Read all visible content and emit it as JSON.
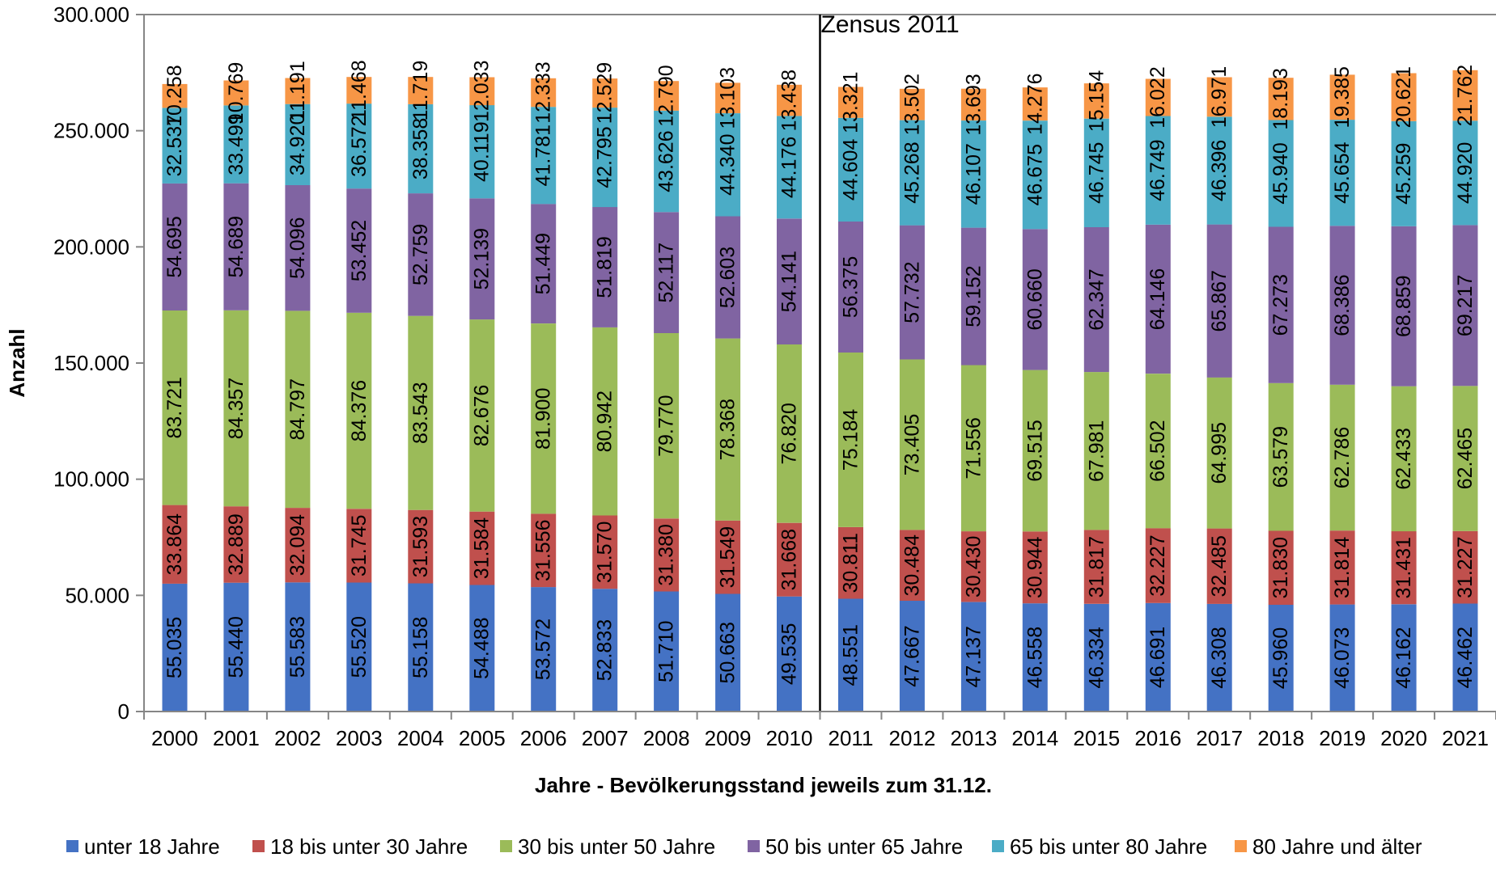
{
  "chart_data": {
    "type": "bar",
    "stacked": true,
    "title": "",
    "xlabel": "Jahre - Bevölkerungsstand jeweils zum 31.12.",
    "ylabel": "Anzahl",
    "ylim": [
      0,
      300000
    ],
    "y_tick_labels": [
      "0",
      "50.000",
      "100.000",
      "150.000",
      "200.000",
      "250.000",
      "300.000"
    ],
    "y_tick_values": [
      0,
      50000,
      100000,
      150000,
      200000,
      250000,
      300000
    ],
    "grid": false,
    "legend_position": "bottom",
    "categories": [
      "2000",
      "2001",
      "2002",
      "2003",
      "2004",
      "2005",
      "2006",
      "2007",
      "2008",
      "2009",
      "2010",
      "2011",
      "2012",
      "2013",
      "2014",
      "2015",
      "2016",
      "2017",
      "2018",
      "2019",
      "2020",
      "2021"
    ],
    "annotation": {
      "text": "Zensus 2011",
      "between": [
        "2010",
        "2011"
      ]
    },
    "series": [
      {
        "name": "unter 18 Jahre",
        "color": "#4472C4",
        "values": [
          55035,
          55440,
          55583,
          55520,
          55158,
          54488,
          53572,
          52833,
          51710,
          50663,
          49535,
          48551,
          47667,
          47137,
          46558,
          46334,
          46691,
          46308,
          45960,
          46073,
          46162,
          46462
        ],
        "labels": [
          "55.035",
          "55.440",
          "55.583",
          "55.520",
          "55.158",
          "54.488",
          "53.572",
          "52.833",
          "51.710",
          "50.663",
          "49.535",
          "48.551",
          "47.667",
          "47.137",
          "46.558",
          "46.334",
          "46.691",
          "46.308",
          "45.960",
          "46.073",
          "46.162",
          "46.462"
        ]
      },
      {
        "name": "18 bis unter 30 Jahre",
        "color": "#C0504D",
        "values": [
          33864,
          32889,
          32094,
          31745,
          31593,
          31584,
          31556,
          31570,
          31380,
          31549,
          31668,
          30811,
          30484,
          30430,
          30944,
          31817,
          32227,
          32485,
          31830,
          31814,
          31431,
          31227
        ],
        "labels": [
          "33.864",
          "32.889",
          "32.094",
          "31.745",
          "31.593",
          "31.584",
          "31.556",
          "31.570",
          "31.380",
          "31.549",
          "31.668",
          "30.811",
          "30.484",
          "30.430",
          "30.944",
          "31.817",
          "32.227",
          "32.485",
          "31.830",
          "31.814",
          "31.431",
          "31.227"
        ]
      },
      {
        "name": "30 bis unter 50 Jahre",
        "color": "#9BBB59",
        "values": [
          83721,
          84357,
          84797,
          84376,
          83543,
          82676,
          81900,
          80942,
          79770,
          78368,
          76820,
          75184,
          73405,
          71556,
          69515,
          67981,
          66502,
          64995,
          63579,
          62786,
          62433,
          62465
        ],
        "labels": [
          "83.721",
          "84.357",
          "84.797",
          "84.376",
          "83.543",
          "82.676",
          "81.900",
          "80.942",
          "79.770",
          "78.368",
          "76.820",
          "75.184",
          "73.405",
          "71.556",
          "69.515",
          "67.981",
          "66.502",
          "64.995",
          "63.579",
          "62.786",
          "62.433",
          "62.465"
        ]
      },
      {
        "name": "50 bis unter 65 Jahre",
        "color": "#8064A2",
        "values": [
          54695,
          54689,
          54096,
          53452,
          52759,
          52139,
          51449,
          51819,
          52117,
          52603,
          54141,
          56375,
          57732,
          59152,
          60660,
          62347,
          64146,
          65867,
          67273,
          68386,
          68859,
          69217
        ],
        "labels": [
          "54.695",
          "54.689",
          "54.096",
          "53.452",
          "52.759",
          "52.139",
          "51.449",
          "51.819",
          "52.117",
          "52.603",
          "54.141",
          "56.375",
          "57.732",
          "59.152",
          "60.660",
          "62.347",
          "64.146",
          "65.867",
          "67.273",
          "68.386",
          "68.859",
          "69.217"
        ]
      },
      {
        "name": "65 bis unter 80 Jahre",
        "color": "#4BACC6",
        "values": [
          32537,
          33499,
          34920,
          36572,
          38358,
          40119,
          41781,
          42795,
          43626,
          44340,
          44176,
          44604,
          45268,
          46107,
          46675,
          46745,
          46749,
          46396,
          45940,
          45654,
          45259,
          44920
        ],
        "labels": [
          "32.537",
          "33.499",
          "34.920",
          "36.572",
          "38.358",
          "40.119",
          "41.781",
          "42.795",
          "43.626",
          "44.340",
          "44.176",
          "44.604",
          "45.268",
          "46.107",
          "46.675",
          "46.745",
          "46.749",
          "46.396",
          "45.940",
          "45.654",
          "45.259",
          "44.920"
        ]
      },
      {
        "name": "80 Jahre und älter",
        "color": "#F79646",
        "values": [
          10258,
          10769,
          11191,
          11468,
          11719,
          12033,
          12333,
          12529,
          12790,
          13103,
          13438,
          13321,
          13502,
          13693,
          14276,
          15154,
          16022,
          16971,
          18193,
          19385,
          20621,
          21762
        ],
        "labels": [
          "10.258",
          "10.769",
          "11.191",
          "11.468",
          "11.719",
          "12.033",
          "12.333",
          "12.529",
          "12.790",
          "13.103",
          "13.438",
          "13.321",
          "13.502",
          "13.693",
          "14.276",
          "15.154",
          "16.022",
          "16.971",
          "18.193",
          "19.385",
          "20.621",
          "21.762"
        ]
      }
    ]
  }
}
